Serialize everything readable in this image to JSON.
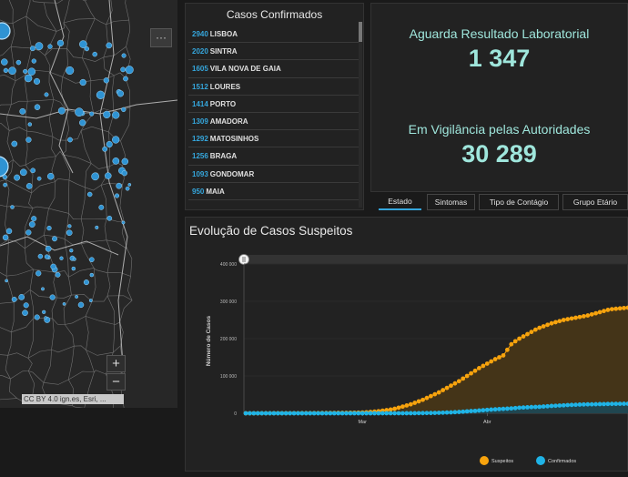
{
  "map": {
    "more_label": "···",
    "zoom_in_label": "+",
    "zoom_out_label": "−",
    "attribution": "CC BY 4.0 ign.es, Esri, ..."
  },
  "confirmed_list": {
    "title": "Casos Confirmados",
    "items": [
      {
        "count": "2940",
        "name": "LISBOA"
      },
      {
        "count": "2020",
        "name": "SINTRA"
      },
      {
        "count": "1605",
        "name": "VILA NOVA DE GAIA"
      },
      {
        "count": "1512",
        "name": "LOURES"
      },
      {
        "count": "1414",
        "name": "PORTO"
      },
      {
        "count": "1309",
        "name": "AMADORA"
      },
      {
        "count": "1292",
        "name": "MATOSINHOS"
      },
      {
        "count": "1256",
        "name": "BRAGA"
      },
      {
        "count": "1093",
        "name": "GONDOMAR"
      },
      {
        "count": "950",
        "name": "MAIA"
      }
    ]
  },
  "indicators": {
    "lab_label": "Aguarda Resultado Laboratorial",
    "lab_value": "1 347",
    "surveillance_label": "Em Vigilância pelas Autoridades",
    "surveillance_value": "30 289"
  },
  "tabs": [
    {
      "label": "Estado",
      "active": true
    },
    {
      "label": "Sintomas",
      "active": false
    },
    {
      "label": "Tipo de Contágio",
      "active": false
    },
    {
      "label": "Grupo Etário",
      "active": false
    }
  ],
  "chart_title": "Evolução de Casos Suspeitos",
  "chart_data": {
    "type": "line",
    "ylabel": "Número de Casos",
    "xlabel": "",
    "ylim": [
      0,
      300000
    ],
    "yticks": [
      "0",
      "100 000",
      "200 000",
      "300 000",
      "400 000"
    ],
    "yticks_values": [
      0,
      100000,
      200000,
      300000,
      400000
    ],
    "xticks": [
      "Mar",
      "Abr"
    ],
    "xticks_days": [
      29,
      60
    ],
    "x_first_date": "2020-01-31",
    "x_last_date": "2020-05-05",
    "series": [
      {
        "name": "Suspeitos",
        "color": "#f7a30d",
        "values": [
          0,
          0,
          0,
          0,
          100,
          200,
          200,
          300,
          300,
          300,
          300,
          400,
          400,
          400,
          500,
          500,
          500,
          600,
          600,
          700,
          800,
          900,
          1000,
          1100,
          1200,
          1300,
          1400,
          1600,
          1800,
          2200,
          2800,
          3500,
          4500,
          5500,
          7000,
          8500,
          10000,
          12000,
          15000,
          18000,
          21000,
          24000,
          28000,
          32000,
          36000,
          41000,
          46000,
          51000,
          56000,
          62000,
          68000,
          74000,
          80000,
          86000,
          93000,
          100000,
          107000,
          114000,
          121000,
          127000,
          133000,
          139000,
          145000,
          150000,
          155000,
          170000,
          185000,
          193000,
          200000,
          206000,
          212000,
          218000,
          224000,
          229000,
          233000,
          237000,
          241000,
          244000,
          247000,
          250000,
          252000,
          254000,
          256000,
          258000,
          260000,
          262000,
          265000,
          268000,
          271000,
          274000,
          277000,
          279000,
          280000,
          281000,
          282000,
          283000
        ],
        "fill_color": "#4a3716"
      },
      {
        "name": "Confirmados",
        "color": "#1fb3e6",
        "values": [
          0,
          0,
          0,
          0,
          0,
          0,
          0,
          0,
          0,
          0,
          0,
          0,
          0,
          0,
          0,
          0,
          0,
          0,
          0,
          0,
          0,
          0,
          0,
          0,
          0,
          0,
          0,
          0,
          0,
          0,
          0,
          0,
          2,
          4,
          13,
          20,
          30,
          40,
          60,
          80,
          110,
          170,
          250,
          330,
          450,
          640,
          780,
          1000,
          1280,
          1600,
          2060,
          2360,
          2990,
          3540,
          4270,
          5170,
          5960,
          6400,
          7440,
          8250,
          9030,
          9890,
          10500,
          11300,
          11700,
          12400,
          13100,
          13900,
          15000,
          15500,
          16100,
          16600,
          16900,
          17400,
          18100,
          18800,
          19700,
          20200,
          20800,
          21300,
          22000,
          22400,
          22800,
          23300,
          23600,
          23900,
          24000,
          24300,
          24500,
          24700,
          25000,
          25200,
          25300,
          25400,
          25500,
          25600
        ],
        "fill_color": "#1a4a5a"
      }
    ],
    "legend": "bottom"
  }
}
